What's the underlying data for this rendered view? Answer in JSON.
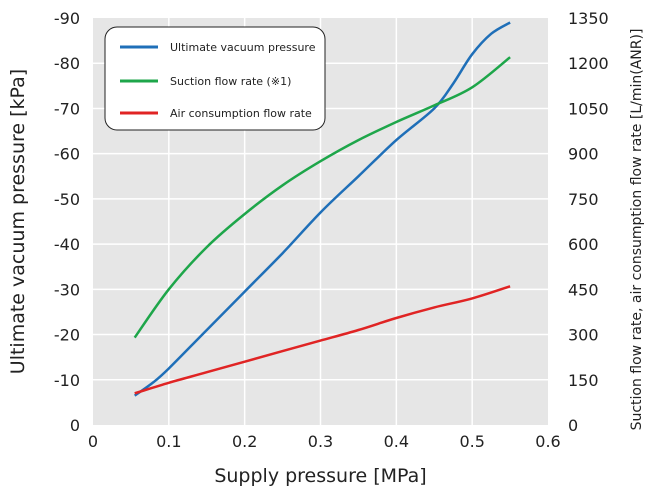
{
  "chart_data": {
    "type": "line",
    "xlabel": "Supply pressure [MPa]",
    "ylabel": "Ultimate vacuum pressure [kPa]",
    "y2label": "Suction flow rate, air consumption flow rate [L/min(ANR)]",
    "xlim": [
      0,
      0.6
    ],
    "ylim": [
      0,
      -90
    ],
    "y2lim": [
      0,
      1350
    ],
    "x_ticks": [
      "0",
      "0.1",
      "0.2",
      "0.3",
      "0.4",
      "0.5",
      "0.6"
    ],
    "y_ticks": [
      "0",
      "-10",
      "-20",
      "-30",
      "-40",
      "-50",
      "-60",
      "-70",
      "-80",
      "-90"
    ],
    "y2_ticks": [
      "0",
      "150",
      "300",
      "450",
      "600",
      "750",
      "900",
      "1050",
      "1200",
      "1350"
    ],
    "grid": true,
    "legend_position": "top-left",
    "series": [
      {
        "name": "Ultimate vacuum pressure",
        "color": "#1f6fb8",
        "axis": "left",
        "x": [
          0.055,
          0.08,
          0.1,
          0.15,
          0.2,
          0.25,
          0.3,
          0.35,
          0.4,
          0.45,
          0.475,
          0.5,
          0.525,
          0.55
        ],
        "y": [
          -6.5,
          -9.5,
          -12.5,
          -21,
          -29.5,
          -38,
          -47,
          -55,
          -63,
          -70,
          -75.5,
          -82,
          -86.5,
          -89
        ]
      },
      {
        "name": "Suction flow rate (※1)",
        "color": "#1ea64a",
        "axis": "right",
        "x": [
          0.055,
          0.1,
          0.15,
          0.2,
          0.25,
          0.3,
          0.35,
          0.4,
          0.45,
          0.5,
          0.55
        ],
        "y": [
          290,
          450,
          590,
          700,
          795,
          875,
          945,
          1005,
          1060,
          1120,
          1220
        ]
      },
      {
        "name": "Air consumption flow rate",
        "color": "#e02424",
        "axis": "right",
        "x": [
          0.055,
          0.1,
          0.15,
          0.2,
          0.25,
          0.3,
          0.35,
          0.4,
          0.45,
          0.5,
          0.55
        ],
        "y": [
          105,
          140,
          175,
          210,
          245,
          280,
          315,
          355,
          390,
          420,
          460
        ]
      }
    ]
  }
}
